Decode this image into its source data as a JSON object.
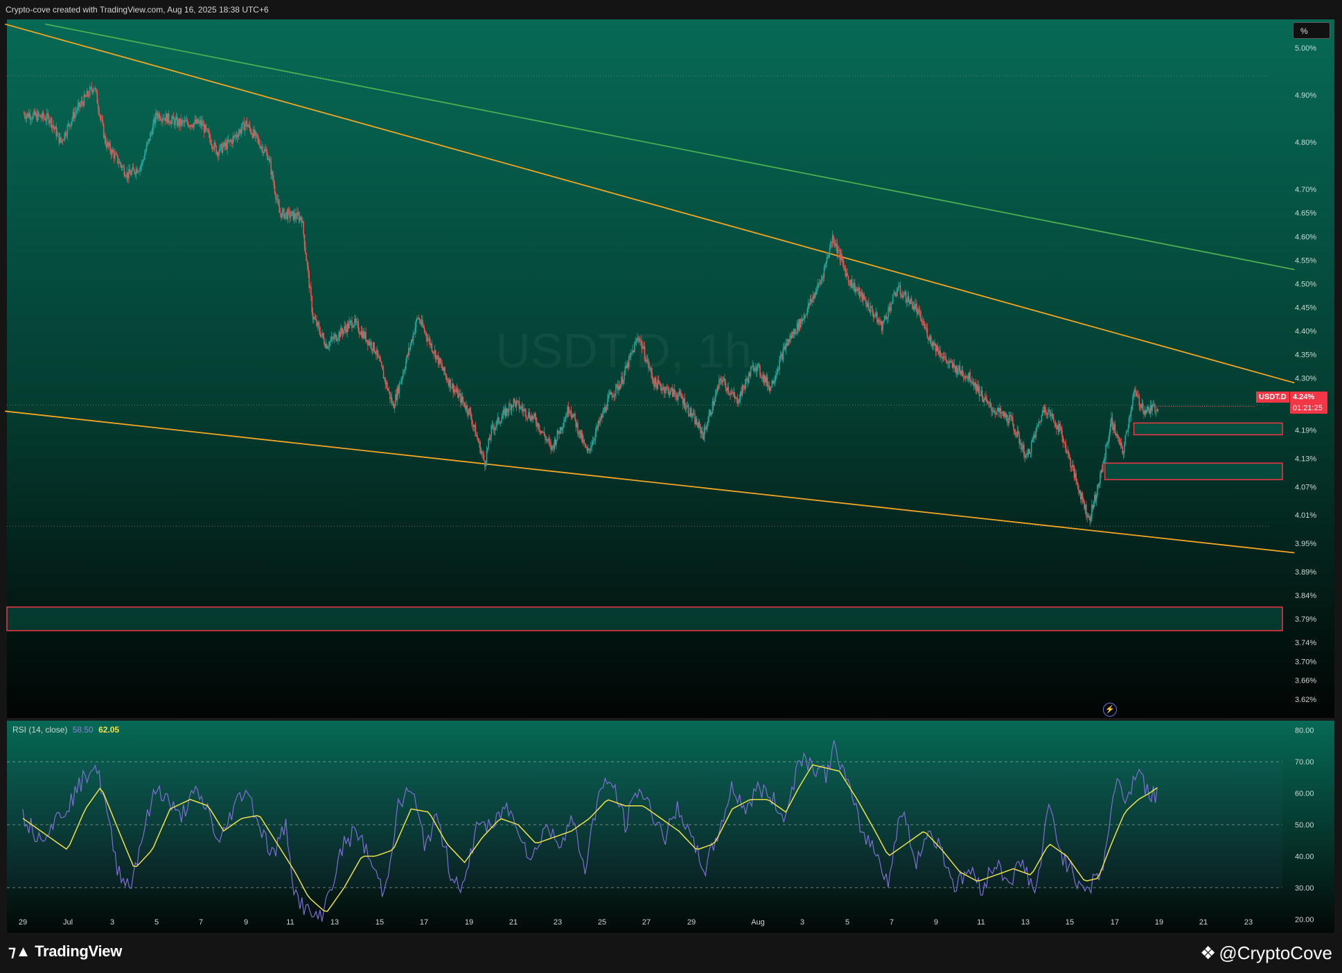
{
  "header": {
    "caption": "Crypto-cove created with TradingView.com, Aug 16, 2025 18:38 UTC+6"
  },
  "footer": {
    "platform_name": "TradingView",
    "author_name": "@CryptoCove",
    "platform_icon": "tradingview-logo-icon",
    "author_icon": "cryptocove-logo-icon"
  },
  "toolbar": {
    "scale_label": "%"
  },
  "watermark": "USDT.D, 1h",
  "price_tag": {
    "symbol": "USDT.D",
    "value": "4.24%",
    "countdown": "01:21:25"
  },
  "rsi_label": {
    "name": "RSI (14, close)",
    "rsi_value": "58.50",
    "ma_value": "62.05"
  },
  "colors": {
    "up_candle": "#26a69a",
    "down_candle": "#ef5350",
    "trendline_orange": "#f5a623",
    "trendline_green": "#4caf50",
    "zone_border": "#f23645",
    "rsi_line": "#7e6fd6",
    "rsi_ma": "#f2e24a"
  },
  "chart_data": [
    {
      "type": "candlestick",
      "symbol": "USDT.D",
      "y_unit": "%",
      "ylim": [
        3.58,
        5.06
      ],
      "y_ticks": [
        "5.00%",
        "4.90%",
        "4.80%",
        "4.70%",
        "4.65%",
        "4.60%",
        "4.55%",
        "4.50%",
        "4.45%",
        "4.40%",
        "4.35%",
        "4.30%",
        "4.25%",
        "4.19%",
        "4.13%",
        "4.07%",
        "4.01%",
        "3.95%",
        "3.89%",
        "3.84%",
        "3.79%",
        "3.74%",
        "3.70%",
        "3.66%",
        "3.62%"
      ],
      "x_ticks": [
        "29",
        "Jul",
        "3",
        "5",
        "7",
        "9",
        "11",
        "13",
        "15",
        "17",
        "19",
        "21",
        "23",
        "25",
        "27",
        "29",
        "Aug",
        "3",
        "5",
        "7",
        "9",
        "11",
        "13",
        "15",
        "17",
        "19",
        "21",
        "23"
      ],
      "close_path": [
        {
          "d": 0,
          "v": 4.86
        },
        {
          "d": 1.2,
          "v": 4.85
        },
        {
          "d": 1.7,
          "v": 4.8
        },
        {
          "d": 2.3,
          "v": 4.86
        },
        {
          "d": 3.2,
          "v": 4.92
        },
        {
          "d": 3.7,
          "v": 4.8
        },
        {
          "d": 4.7,
          "v": 4.73
        },
        {
          "d": 5.3,
          "v": 4.75
        },
        {
          "d": 6.0,
          "v": 4.86
        },
        {
          "d": 7.0,
          "v": 4.84
        },
        {
          "d": 8.0,
          "v": 4.84
        },
        {
          "d": 8.7,
          "v": 4.78
        },
        {
          "d": 9.3,
          "v": 4.8
        },
        {
          "d": 10.0,
          "v": 4.84
        },
        {
          "d": 11.0,
          "v": 4.77
        },
        {
          "d": 11.5,
          "v": 4.65
        },
        {
          "d": 12.5,
          "v": 4.64
        },
        {
          "d": 13.0,
          "v": 4.43
        },
        {
          "d": 13.6,
          "v": 4.37
        },
        {
          "d": 14.8,
          "v": 4.42
        },
        {
          "d": 15.8,
          "v": 4.36
        },
        {
          "d": 16.6,
          "v": 4.24
        },
        {
          "d": 17.2,
          "v": 4.34
        },
        {
          "d": 17.7,
          "v": 4.43
        },
        {
          "d": 18.2,
          "v": 4.38
        },
        {
          "d": 19.0,
          "v": 4.3
        },
        {
          "d": 20.0,
          "v": 4.23
        },
        {
          "d": 20.7,
          "v": 4.12
        },
        {
          "d": 21.0,
          "v": 4.19
        },
        {
          "d": 22.0,
          "v": 4.25
        },
        {
          "d": 23.0,
          "v": 4.21
        },
        {
          "d": 23.7,
          "v": 4.15
        },
        {
          "d": 24.5,
          "v": 4.24
        },
        {
          "d": 25.3,
          "v": 4.14
        },
        {
          "d": 26.3,
          "v": 4.26
        },
        {
          "d": 26.8,
          "v": 4.29
        },
        {
          "d": 27.6,
          "v": 4.39
        },
        {
          "d": 28.3,
          "v": 4.29
        },
        {
          "d": 29.5,
          "v": 4.26
        },
        {
          "d": 30.5,
          "v": 4.18
        },
        {
          "d": 31.3,
          "v": 4.3
        },
        {
          "d": 32.0,
          "v": 4.25
        },
        {
          "d": 32.8,
          "v": 4.33
        },
        {
          "d": 33.5,
          "v": 4.28
        },
        {
          "d": 34.2,
          "v": 4.37
        },
        {
          "d": 35.0,
          "v": 4.43
        },
        {
          "d": 35.8,
          "v": 4.51
        },
        {
          "d": 36.3,
          "v": 4.6
        },
        {
          "d": 37.0,
          "v": 4.51
        },
        {
          "d": 37.8,
          "v": 4.46
        },
        {
          "d": 38.5,
          "v": 4.41
        },
        {
          "d": 39.2,
          "v": 4.49
        },
        {
          "d": 40.0,
          "v": 4.45
        },
        {
          "d": 40.7,
          "v": 4.38
        },
        {
          "d": 41.5,
          "v": 4.33
        },
        {
          "d": 42.5,
          "v": 4.3
        },
        {
          "d": 43.3,
          "v": 4.24
        },
        {
          "d": 44.3,
          "v": 4.21
        },
        {
          "d": 45.0,
          "v": 4.13
        },
        {
          "d": 45.8,
          "v": 4.24
        },
        {
          "d": 46.5,
          "v": 4.19
        },
        {
          "d": 47.3,
          "v": 4.07
        },
        {
          "d": 47.8,
          "v": 4.0
        },
        {
          "d": 48.3,
          "v": 4.09
        },
        {
          "d": 48.8,
          "v": 4.21
        },
        {
          "d": 49.3,
          "v": 4.14
        },
        {
          "d": 49.8,
          "v": 4.27
        },
        {
          "d": 50.3,
          "v": 4.23
        },
        {
          "d": 50.9,
          "v": 4.24
        }
      ],
      "candle_days": [
        0,
        50.9
      ],
      "trendlines": [
        {
          "name": "upper-orange",
          "from": {
            "d": -0.8,
            "v": 5.05
          },
          "to": {
            "d": 57.0,
            "v": 4.29
          }
        },
        {
          "name": "upper-green",
          "from": {
            "d": 1.0,
            "v": 5.05
          },
          "to": {
            "d": 57.0,
            "v": 4.53
          }
        },
        {
          "name": "lower-orange",
          "from": {
            "d": -0.8,
            "v": 4.23
          },
          "to": {
            "d": 57.0,
            "v": 3.93
          }
        }
      ],
      "dotted_levels": [
        4.94,
        4.243,
        3.986
      ],
      "zones": [
        {
          "name": "support-zone",
          "from_d": -0.8,
          "to_d": 57.0,
          "top": 3.815,
          "bottom": 3.765
        },
        {
          "name": "demand-zone-1",
          "from_d": 48.5,
          "to_d": 56.5,
          "top": 4.12,
          "bottom": 4.085
        },
        {
          "name": "demand-zone-2",
          "from_d": 49.8,
          "to_d": 57.0,
          "top": 4.205,
          "bottom": 4.18
        }
      ],
      "last_price": 4.24
    },
    {
      "type": "line",
      "name": "RSI (14, close)",
      "ylim": [
        17,
        83
      ],
      "y_ticks": [
        "80.00",
        "70.00",
        "60.00",
        "50.00",
        "40.00",
        "30.00",
        "20.00"
      ],
      "levels": [
        70,
        50,
        30
      ],
      "series": [
        {
          "name": "RSI",
          "points": [
            {
              "d": 0,
              "v": 53
            },
            {
              "d": 0.7,
              "v": 46
            },
            {
              "d": 1.3,
              "v": 50
            },
            {
              "d": 2.0,
              "v": 56
            },
            {
              "d": 2.6,
              "v": 63
            },
            {
              "d": 3.2,
              "v": 70
            },
            {
              "d": 3.6,
              "v": 60
            },
            {
              "d": 4.2,
              "v": 37
            },
            {
              "d": 4.8,
              "v": 30
            },
            {
              "d": 5.4,
              "v": 48
            },
            {
              "d": 6.0,
              "v": 62
            },
            {
              "d": 6.5,
              "v": 58
            },
            {
              "d": 7.0,
              "v": 52
            },
            {
              "d": 7.7,
              "v": 60
            },
            {
              "d": 8.3,
              "v": 55
            },
            {
              "d": 8.8,
              "v": 43
            },
            {
              "d": 9.4,
              "v": 55
            },
            {
              "d": 10.0,
              "v": 62
            },
            {
              "d": 10.6,
              "v": 50
            },
            {
              "d": 11.2,
              "v": 40
            },
            {
              "d": 11.8,
              "v": 50
            },
            {
              "d": 12.2,
              "v": 28
            },
            {
              "d": 12.8,
              "v": 22
            },
            {
              "d": 13.3,
              "v": 20
            },
            {
              "d": 13.8,
              "v": 30
            },
            {
              "d": 14.4,
              "v": 44
            },
            {
              "d": 15.0,
              "v": 48
            },
            {
              "d": 15.6,
              "v": 38
            },
            {
              "d": 16.2,
              "v": 28
            },
            {
              "d": 16.8,
              "v": 55
            },
            {
              "d": 17.4,
              "v": 62
            },
            {
              "d": 18.0,
              "v": 44
            },
            {
              "d": 18.6,
              "v": 52
            },
            {
              "d": 19.2,
              "v": 34
            },
            {
              "d": 19.8,
              "v": 30
            },
            {
              "d": 20.4,
              "v": 52
            },
            {
              "d": 21.0,
              "v": 48
            },
            {
              "d": 21.6,
              "v": 56
            },
            {
              "d": 22.2,
              "v": 50
            },
            {
              "d": 22.8,
              "v": 38
            },
            {
              "d": 23.4,
              "v": 50
            },
            {
              "d": 24.0,
              "v": 44
            },
            {
              "d": 24.6,
              "v": 52
            },
            {
              "d": 25.2,
              "v": 36
            },
            {
              "d": 25.8,
              "v": 60
            },
            {
              "d": 26.4,
              "v": 64
            },
            {
              "d": 27.0,
              "v": 50
            },
            {
              "d": 27.6,
              "v": 62
            },
            {
              "d": 28.2,
              "v": 54
            },
            {
              "d": 28.8,
              "v": 46
            },
            {
              "d": 29.4,
              "v": 56
            },
            {
              "d": 30.0,
              "v": 44
            },
            {
              "d": 30.6,
              "v": 36
            },
            {
              "d": 31.2,
              "v": 48
            },
            {
              "d": 31.8,
              "v": 62
            },
            {
              "d": 32.4,
              "v": 55
            },
            {
              "d": 33.0,
              "v": 62
            },
            {
              "d": 33.6,
              "v": 58
            },
            {
              "d": 34.2,
              "v": 52
            },
            {
              "d": 34.8,
              "v": 72
            },
            {
              "d": 35.4,
              "v": 69
            },
            {
              "d": 36.0,
              "v": 66
            },
            {
              "d": 36.4,
              "v": 75
            },
            {
              "d": 37.0,
              "v": 62
            },
            {
              "d": 37.6,
              "v": 48
            },
            {
              "d": 38.2,
              "v": 42
            },
            {
              "d": 38.8,
              "v": 32
            },
            {
              "d": 39.4,
              "v": 56
            },
            {
              "d": 40.0,
              "v": 38
            },
            {
              "d": 40.6,
              "v": 48
            },
            {
              "d": 41.2,
              "v": 42
            },
            {
              "d": 41.8,
              "v": 30
            },
            {
              "d": 42.4,
              "v": 36
            },
            {
              "d": 43.0,
              "v": 30
            },
            {
              "d": 43.6,
              "v": 38
            },
            {
              "d": 44.2,
              "v": 32
            },
            {
              "d": 44.8,
              "v": 38
            },
            {
              "d": 45.4,
              "v": 28
            },
            {
              "d": 46.0,
              "v": 56
            },
            {
              "d": 46.6,
              "v": 40
            },
            {
              "d": 47.2,
              "v": 33
            },
            {
              "d": 47.8,
              "v": 30
            },
            {
              "d": 48.4,
              "v": 36
            },
            {
              "d": 49.0,
              "v": 64
            },
            {
              "d": 49.5,
              "v": 58
            },
            {
              "d": 50.0,
              "v": 69
            },
            {
              "d": 50.4,
              "v": 60
            },
            {
              "d": 50.9,
              "v": 59
            }
          ]
        },
        {
          "name": "RSI-based MA",
          "points": [
            {
              "d": 0,
              "v": 52
            },
            {
              "d": 1.0,
              "v": 47
            },
            {
              "d": 2.0,
              "v": 42
            },
            {
              "d": 2.8,
              "v": 55
            },
            {
              "d": 3.5,
              "v": 62
            },
            {
              "d": 4.3,
              "v": 48
            },
            {
              "d": 5.0,
              "v": 36
            },
            {
              "d": 5.8,
              "v": 42
            },
            {
              "d": 6.6,
              "v": 55
            },
            {
              "d": 7.5,
              "v": 58
            },
            {
              "d": 8.3,
              "v": 56
            },
            {
              "d": 9.0,
              "v": 48
            },
            {
              "d": 9.8,
              "v": 52
            },
            {
              "d": 10.6,
              "v": 53
            },
            {
              "d": 11.4,
              "v": 44
            },
            {
              "d": 12.2,
              "v": 35
            },
            {
              "d": 12.8,
              "v": 27
            },
            {
              "d": 13.6,
              "v": 22
            },
            {
              "d": 14.4,
              "v": 30
            },
            {
              "d": 15.2,
              "v": 40
            },
            {
              "d": 15.8,
              "v": 40
            },
            {
              "d": 16.6,
              "v": 42
            },
            {
              "d": 17.4,
              "v": 55
            },
            {
              "d": 18.2,
              "v": 54
            },
            {
              "d": 19.0,
              "v": 44
            },
            {
              "d": 19.8,
              "v": 38
            },
            {
              "d": 20.6,
              "v": 46
            },
            {
              "d": 21.4,
              "v": 52
            },
            {
              "d": 22.2,
              "v": 50
            },
            {
              "d": 23.0,
              "v": 44
            },
            {
              "d": 23.8,
              "v": 46
            },
            {
              "d": 24.6,
              "v": 48
            },
            {
              "d": 25.4,
              "v": 52
            },
            {
              "d": 26.2,
              "v": 58
            },
            {
              "d": 27.0,
              "v": 56
            },
            {
              "d": 27.8,
              "v": 56
            },
            {
              "d": 28.6,
              "v": 52
            },
            {
              "d": 29.4,
              "v": 48
            },
            {
              "d": 30.2,
              "v": 42
            },
            {
              "d": 31.0,
              "v": 44
            },
            {
              "d": 31.8,
              "v": 55
            },
            {
              "d": 32.6,
              "v": 58
            },
            {
              "d": 33.4,
              "v": 58
            },
            {
              "d": 34.2,
              "v": 54
            },
            {
              "d": 34.8,
              "v": 62
            },
            {
              "d": 35.4,
              "v": 69
            },
            {
              "d": 36.0,
              "v": 68
            },
            {
              "d": 36.6,
              "v": 67
            },
            {
              "d": 37.4,
              "v": 58
            },
            {
              "d": 38.2,
              "v": 48
            },
            {
              "d": 38.8,
              "v": 40
            },
            {
              "d": 39.6,
              "v": 44
            },
            {
              "d": 40.4,
              "v": 48
            },
            {
              "d": 41.2,
              "v": 42
            },
            {
              "d": 42.0,
              "v": 35
            },
            {
              "d": 42.8,
              "v": 32
            },
            {
              "d": 43.6,
              "v": 34
            },
            {
              "d": 44.4,
              "v": 36
            },
            {
              "d": 45.2,
              "v": 34
            },
            {
              "d": 46.0,
              "v": 44
            },
            {
              "d": 46.8,
              "v": 40
            },
            {
              "d": 47.6,
              "v": 32
            },
            {
              "d": 48.2,
              "v": 33
            },
            {
              "d": 48.8,
              "v": 44
            },
            {
              "d": 49.4,
              "v": 54
            },
            {
              "d": 50.0,
              "v": 58
            },
            {
              "d": 50.5,
              "v": 60
            },
            {
              "d": 50.9,
              "v": 62
            }
          ]
        }
      ]
    }
  ]
}
